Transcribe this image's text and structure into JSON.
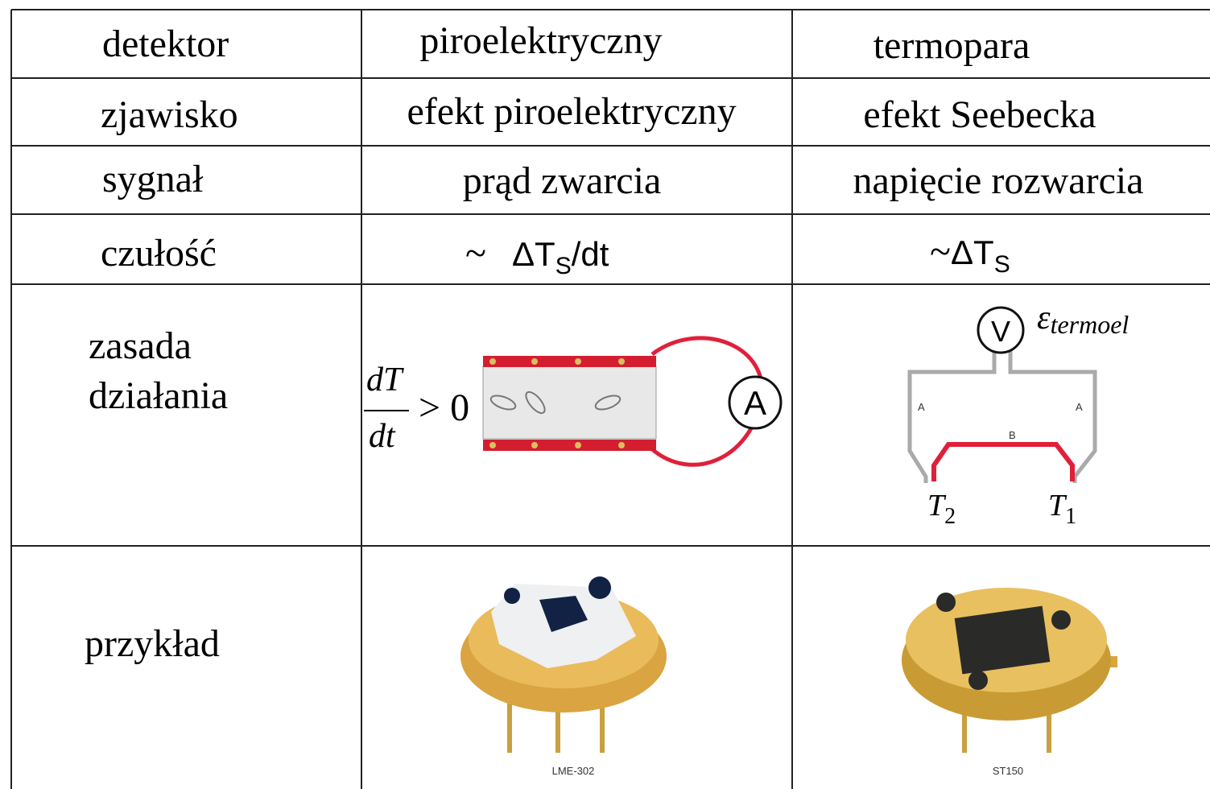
{
  "table": {
    "rows": [
      [
        "detektor",
        "piroelektryczny",
        "termopara"
      ],
      [
        "zjawisko",
        "efekt piroelektryczny",
        "efekt Seebecka"
      ],
      [
        "sygnał",
        "prąd zwarcia",
        "napięcie rozwarcia"
      ]
    ],
    "sensitivity": {
      "label": "czułość",
      "pyro": {
        "prefix": "~",
        "main": "ΔT",
        "sub": "S",
        "suffix": "/dt"
      },
      "thermo": {
        "prefix": "~",
        "main": "ΔT",
        "sub": "S"
      }
    },
    "principle": {
      "label_lines": [
        "zasada",
        "działania"
      ],
      "pyro": {
        "numerator": "dT",
        "denominator": "dt",
        "condition": "> 0",
        "meter": "A"
      },
      "thermo": {
        "meter": "V",
        "emf": {
          "symbol": "ε",
          "sub": "termoel"
        },
        "wire_a_left": "A",
        "wire_a_right": "A",
        "wire_b": "B",
        "t2": {
          "symbol": "T",
          "sub": "2"
        },
        "t1": {
          "symbol": "T",
          "sub": "1"
        }
      }
    },
    "example": {
      "label": "przykład",
      "pyro_model": "LME-302",
      "thermo_model": "ST150"
    }
  }
}
